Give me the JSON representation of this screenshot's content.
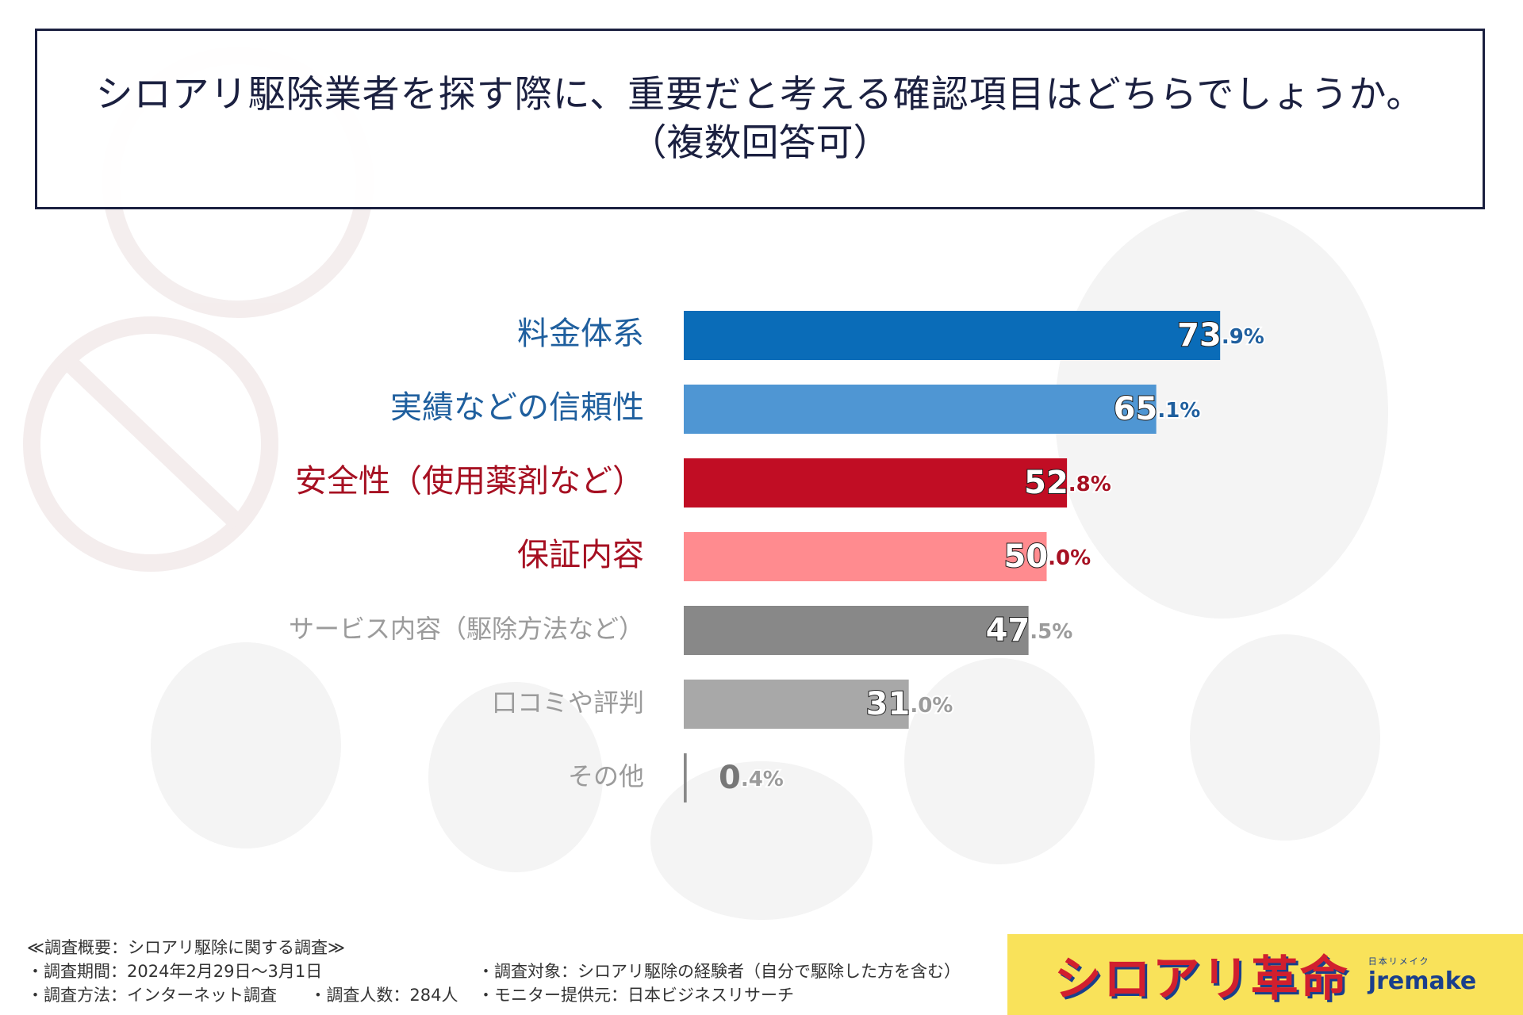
{
  "title": {
    "line1": "シロアリ駆除業者を探す際に、重要だと考える確認項目はどちらでしょうか。",
    "line2": "（複数回答可）"
  },
  "chart_data": {
    "type": "bar",
    "orientation": "horizontal",
    "categories": [
      "料金体系",
      "実績などの信頼性",
      "安全性（使用薬剤など）",
      "保証内容",
      "サービス内容（駆除方法など）",
      "口コミや評判",
      "その他"
    ],
    "values": [
      73.9,
      65.1,
      52.8,
      50.0,
      47.5,
      31.0,
      0.4
    ],
    "unit": "%",
    "colors": [
      "#0a6cb8",
      "#4f96d3",
      "#c10d24",
      "#ff8b8f",
      "#888888",
      "#a8a8a8",
      "#888888"
    ],
    "label_colors": [
      "#1f5f9e",
      "#1f5f9e",
      "#a61022",
      "#a61022",
      "#9b9b9b",
      "#9b9b9b",
      "#9b9b9b"
    ],
    "xlim": [
      0,
      100
    ],
    "grid": false,
    "legend": "none"
  },
  "footnotes": {
    "summary": "≪調査概要：シロアリ駆除に関する調査≫",
    "period": "・調査期間：2024年2月29日〜3月1日",
    "method": "・調査方法：インターネット調査",
    "sample": "・調査人数：284人",
    "target": "・調査対象：シロアリ駆除の経験者（自分で駆除した方を含む）",
    "provider": "・モニター提供元：日本ビジネスリサーチ"
  },
  "logo": {
    "main": "シロアリ革命",
    "ruby": "日本リメイク",
    "brand": "jremake",
    "bg_color": "#f9e25a",
    "main_color": "#d11f2e",
    "brand_color": "#1a3f8c"
  }
}
